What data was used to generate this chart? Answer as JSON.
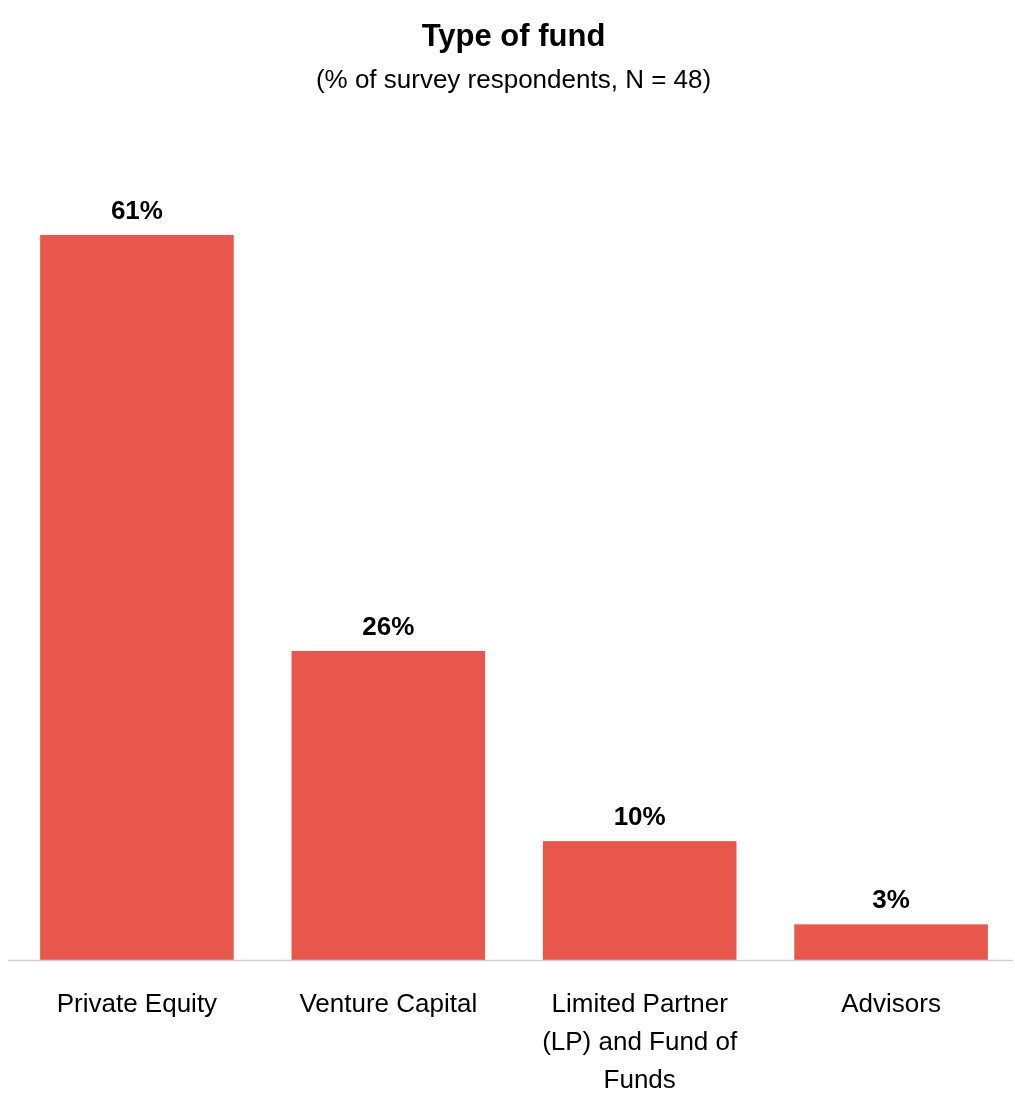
{
  "chart_data": {
    "type": "bar",
    "title": "Type of fund",
    "subtitle": "(% of survey respondents, N = 48)",
    "categories": [
      "Private Equity",
      "Venture Capital",
      "Limited Partner (LP) and Fund of Funds",
      "Advisors"
    ],
    "values": [
      61,
      26,
      10,
      3
    ],
    "value_labels": [
      "61%",
      "26%",
      "10%",
      "3%"
    ],
    "color": "#e8574c"
  }
}
